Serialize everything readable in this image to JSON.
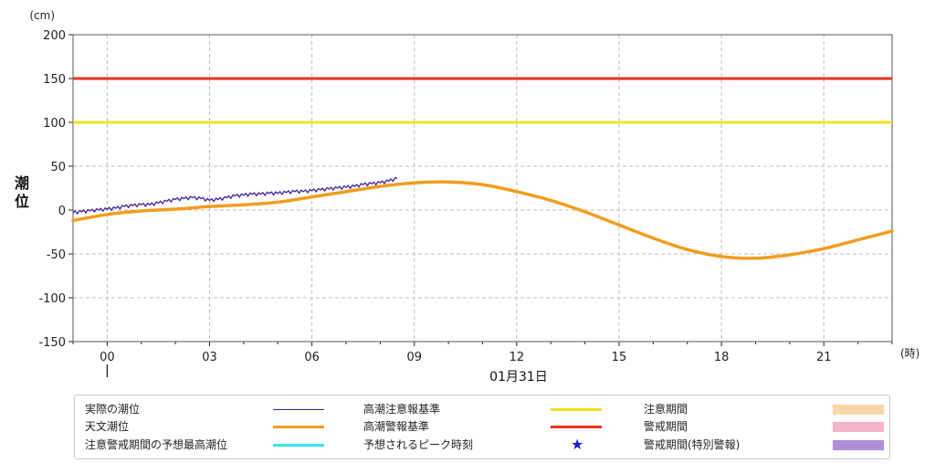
{
  "chart_data": {
    "type": "line",
    "unit_label": "(cm)",
    "ylabel": "潮位",
    "x_unit_label": "(時)",
    "date_label": "01月31日",
    "ylim": [
      -150,
      200
    ],
    "y_ticks": [
      200,
      150,
      100,
      50,
      0,
      -50,
      -100,
      -150
    ],
    "xlim": [
      -1.0,
      23.0
    ],
    "x_ticks": [
      {
        "hour": 0,
        "label": "00"
      },
      {
        "hour": 3,
        "label": "03"
      },
      {
        "hour": 6,
        "label": "06"
      },
      {
        "hour": 9,
        "label": "09"
      },
      {
        "hour": 12,
        "label": "12"
      },
      {
        "hour": 15,
        "label": "15"
      },
      {
        "hour": 18,
        "label": "18"
      },
      {
        "hour": 21,
        "label": "21"
      }
    ],
    "grid": true,
    "reference_lines": [
      {
        "name": "高潮警報基準",
        "value": 150,
        "color": "#e8341c"
      },
      {
        "name": "高潮注意報基準",
        "value": 100,
        "color": "#f2e41c"
      }
    ],
    "series": [
      {
        "name": "天文潮位",
        "color": "#f39c1e",
        "x": [
          -1.0,
          0,
          1,
          2,
          3,
          4,
          5,
          6,
          7,
          8,
          9,
          10,
          11,
          12,
          13,
          14,
          15,
          16,
          17,
          18,
          19,
          20,
          21,
          22,
          23
        ],
        "y": [
          -12,
          -5,
          -1,
          1,
          4,
          6,
          9,
          15,
          21,
          27,
          31,
          32,
          29,
          21,
          11,
          -2,
          -17,
          -32,
          -45,
          -53,
          -55,
          -51,
          -44,
          -34,
          -24
        ]
      },
      {
        "name": "実際の潮位",
        "color": "#3f1e9c",
        "x": [
          -1.0,
          -0.75,
          -0.5,
          -0.25,
          0,
          0.25,
          0.5,
          0.75,
          1,
          1.25,
          1.5,
          1.75,
          2,
          2.25,
          2.5,
          2.75,
          3,
          3.25,
          3.5,
          3.75,
          4,
          4.25,
          4.5,
          4.75,
          5,
          5.25,
          5.5,
          5.75,
          6,
          6.25,
          6.5,
          6.75,
          7,
          7.25,
          7.5,
          7.75,
          8,
          8.25,
          8.5
        ],
        "y": [
          -3,
          -2,
          -1,
          0,
          1,
          2,
          4,
          5,
          6,
          6,
          8,
          10,
          12,
          13,
          14,
          13,
          11,
          12,
          14,
          16,
          17,
          18,
          18,
          19,
          19,
          20,
          21,
          21,
          22,
          23,
          24,
          25,
          26,
          27,
          29,
          30,
          31,
          33,
          36
        ]
      }
    ]
  },
  "legend": {
    "rows": [
      [
        {
          "label": "実際の潮位",
          "kind": "line",
          "color": "#3f1e9c",
          "thickness": 1
        },
        {
          "label": "高潮注意報基準",
          "kind": "line",
          "color": "#f2e41c",
          "thickness": 3
        },
        {
          "label": "注意期間",
          "kind": "swatch",
          "color": "#f9d7a8"
        }
      ],
      [
        {
          "label": "天文潮位",
          "kind": "line",
          "color": "#f39c1e",
          "thickness": 3
        },
        {
          "label": "高潮警報基準",
          "kind": "line",
          "color": "#e8341c",
          "thickness": 3
        },
        {
          "label": "警戒期間",
          "kind": "swatch",
          "color": "#f7b3c8"
        }
      ],
      [
        {
          "label": "注意警戒期間の予想最高潮位",
          "kind": "line",
          "color": "#33e6ee",
          "thickness": 3
        },
        {
          "label": "予想されるピーク時刻",
          "kind": "star",
          "color": "#1c1ccc",
          "glyph": "★"
        },
        {
          "label": "警戒期間(特別警報)",
          "kind": "swatch",
          "color": "#b08fd9"
        }
      ]
    ]
  }
}
